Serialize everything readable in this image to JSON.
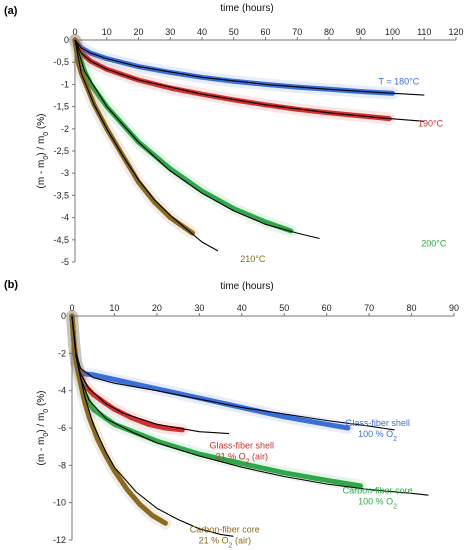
{
  "chart_data": [
    {
      "panel_label": "(a)",
      "type": "line",
      "xlabel": "time (hours)",
      "ylabel": "(m - m0) / m0 (%)",
      "xlim": [
        0,
        120
      ],
      "ylim": [
        -5,
        0
      ],
      "xticks": [
        0,
        10,
        20,
        30,
        40,
        50,
        60,
        70,
        80,
        90,
        100,
        110,
        120
      ],
      "yticks": [
        0,
        -0.5,
        -1,
        -1.5,
        -2,
        -2.5,
        -3,
        -3.5,
        -4,
        -4.5,
        -5
      ],
      "x_axis_position": "top",
      "series": [
        {
          "name": "T = 180°C",
          "color": "#3a6fd8",
          "x": [
            0,
            2,
            5,
            10,
            20,
            30,
            40,
            50,
            60,
            70,
            80,
            90,
            100
          ],
          "y": [
            0,
            -0.18,
            -0.3,
            -0.42,
            -0.6,
            -0.73,
            -0.84,
            -0.93,
            -1.0,
            -1.06,
            -1.11,
            -1.16,
            -1.2
          ]
        },
        {
          "name": "190°C",
          "color": "#d42f2f",
          "x": [
            0,
            2,
            5,
            10,
            20,
            30,
            40,
            50,
            60,
            70,
            80,
            90,
            99
          ],
          "y": [
            0,
            -0.3,
            -0.48,
            -0.66,
            -0.9,
            -1.08,
            -1.22,
            -1.35,
            -1.46,
            -1.56,
            -1.64,
            -1.71,
            -1.77
          ]
        },
        {
          "name": "200°C",
          "color": "#2ea84a",
          "x": [
            0,
            1,
            3,
            5,
            10,
            15,
            20,
            30,
            40,
            50,
            60,
            68
          ],
          "y": [
            0,
            -0.3,
            -0.7,
            -1.0,
            -1.5,
            -1.9,
            -2.3,
            -2.9,
            -3.4,
            -3.8,
            -4.1,
            -4.3
          ]
        },
        {
          "name": "210°C",
          "color": "#8a6a1e",
          "x": [
            0,
            1,
            2,
            4,
            6,
            10,
            15,
            20,
            25,
            30,
            35,
            37
          ],
          "y": [
            0,
            -0.5,
            -0.75,
            -1.1,
            -1.45,
            -2.0,
            -2.6,
            -3.2,
            -3.65,
            -4.0,
            -4.25,
            -4.35
          ]
        }
      ],
      "fits": [
        {
          "x": [
            0,
            2,
            5,
            10,
            20,
            40,
            60,
            80,
            100,
            110
          ],
          "y": [
            0,
            -0.18,
            -0.3,
            -0.42,
            -0.6,
            -0.84,
            -1.0,
            -1.11,
            -1.2,
            -1.24
          ]
        },
        {
          "x": [
            0,
            2,
            5,
            10,
            20,
            40,
            60,
            80,
            99,
            110
          ],
          "y": [
            0,
            -0.3,
            -0.48,
            -0.66,
            -0.9,
            -1.22,
            -1.46,
            -1.64,
            -1.77,
            -1.83
          ]
        },
        {
          "x": [
            0,
            3,
            10,
            20,
            30,
            40,
            50,
            60,
            70,
            77
          ],
          "y": [
            0,
            -0.7,
            -1.5,
            -2.3,
            -2.95,
            -3.45,
            -3.85,
            -4.15,
            -4.35,
            -4.47
          ]
        },
        {
          "x": [
            0,
            2,
            6,
            10,
            15,
            20,
            25,
            30,
            35,
            40,
            45
          ],
          "y": [
            0,
            -0.75,
            -1.45,
            -2.0,
            -2.6,
            -3.15,
            -3.6,
            -3.95,
            -4.25,
            -4.55,
            -4.75
          ]
        }
      ],
      "annotations": [
        {
          "text": "T = 180°C",
          "color": "#3a6fd8",
          "x": 102,
          "y": -1.0
        },
        {
          "text": "190°C",
          "color": "#d42f2f",
          "x": 112,
          "y": -1.95
        },
        {
          "text": "200°C",
          "color": "#2ea84a",
          "x": 113,
          "y": -4.65
        },
        {
          "text": "210°C",
          "color": "#8a6a1e",
          "x": 56,
          "y": -5.0
        }
      ]
    },
    {
      "panel_label": "(b)",
      "type": "line",
      "xlabel": "time (hours)",
      "ylabel": "(m - m0) / m0 (%)",
      "xlim": [
        0,
        90
      ],
      "ylim": [
        -12,
        0
      ],
      "xticks": [
        0,
        10,
        20,
        30,
        40,
        50,
        60,
        70,
        80,
        90
      ],
      "yticks": [
        0,
        -2,
        -4,
        -6,
        -8,
        -10,
        -12
      ],
      "x_axis_position": "top",
      "series": [
        {
          "name": "Glass-fiber shell 100 % O2",
          "color": "#3a6fd8",
          "x": [
            0,
            0.5,
            1,
            2,
            3,
            5,
            10,
            20,
            30,
            40,
            50,
            60,
            65
          ],
          "y": [
            0,
            -1.5,
            -2.5,
            -3.0,
            -3.1,
            -3.15,
            -3.4,
            -3.9,
            -4.4,
            -4.9,
            -5.4,
            -5.8,
            -6.0
          ]
        },
        {
          "name": "Glass-fiber shell 21 % O2 (air)",
          "color": "#d42f2f",
          "x": [
            0,
            0.5,
            1,
            2,
            3,
            5,
            8,
            10,
            14,
            18,
            22,
            26
          ],
          "y": [
            0,
            -1.5,
            -2.5,
            -3.2,
            -3.7,
            -4.2,
            -4.7,
            -5.0,
            -5.45,
            -5.8,
            -6.0,
            -6.1
          ]
        },
        {
          "name": "Carbon-fiber core 100 % O2",
          "color": "#2ea84a",
          "x": [
            0,
            0.5,
            1,
            2,
            3,
            5,
            10,
            20,
            30,
            40,
            50,
            60,
            68
          ],
          "y": [
            0,
            -1.5,
            -2.5,
            -3.5,
            -4.2,
            -5.0,
            -5.8,
            -6.7,
            -7.4,
            -7.9,
            -8.4,
            -8.8,
            -9.1
          ]
        },
        {
          "name": "Carbon-fiber core 21 % O2 (air)",
          "color": "#8a6a1e",
          "x": [
            0,
            0.5,
            1,
            2,
            3,
            4,
            6,
            8,
            10,
            13,
            16,
            19,
            22
          ],
          "y": [
            0,
            -1.5,
            -2.5,
            -3.6,
            -4.6,
            -5.4,
            -6.6,
            -7.5,
            -8.3,
            -9.3,
            -10.1,
            -10.7,
            -11.1
          ]
        }
      ],
      "fits": [
        {
          "x": [
            0,
            1,
            2,
            5,
            10,
            20,
            40,
            60,
            70,
            76
          ],
          "y": [
            0,
            -2.0,
            -2.8,
            -3.3,
            -3.6,
            -4.0,
            -4.9,
            -5.6,
            -5.9,
            -6.1
          ]
        },
        {
          "x": [
            0,
            1,
            2,
            4,
            8,
            12,
            20,
            30,
            37
          ],
          "y": [
            0,
            -2.2,
            -3.1,
            -3.9,
            -4.7,
            -5.2,
            -5.8,
            -6.2,
            -6.3
          ]
        },
        {
          "x": [
            0,
            1,
            2,
            4,
            8,
            14,
            20,
            30,
            40,
            50,
            60,
            70,
            80,
            84
          ],
          "y": [
            0,
            -2.2,
            -3.3,
            -4.5,
            -5.5,
            -6.2,
            -6.8,
            -7.5,
            -8.1,
            -8.6,
            -9.0,
            -9.3,
            -9.5,
            -9.6
          ]
        },
        {
          "x": [
            0,
            1,
            2,
            3,
            5,
            8,
            10,
            15,
            20,
            25,
            30,
            35,
            38
          ],
          "y": [
            0,
            -2.2,
            -3.3,
            -4.3,
            -5.8,
            -7.3,
            -8.1,
            -9.4,
            -10.3,
            -10.9,
            -11.4,
            -11.7,
            -11.8
          ]
        }
      ],
      "annotations": [
        {
          "lines": [
            "Glass-fiber shell",
            "100 % O2"
          ],
          "color": "#3a6fd8",
          "x": 72,
          "y": -5.9
        },
        {
          "lines": [
            "Glass-fiber shell",
            "21 % O2 (air)"
          ],
          "color": "#d42f2f",
          "x": 40,
          "y": -7.1
        },
        {
          "lines": [
            "Carbon-fiber core",
            "100 % O2"
          ],
          "color": "#2ea84a",
          "x": 72,
          "y": -9.5
        },
        {
          "lines": [
            "Carbon-fiber core",
            "21 % O2 (air)"
          ],
          "color": "#8a6a1e",
          "x": 36,
          "y": -11.6
        }
      ]
    }
  ]
}
